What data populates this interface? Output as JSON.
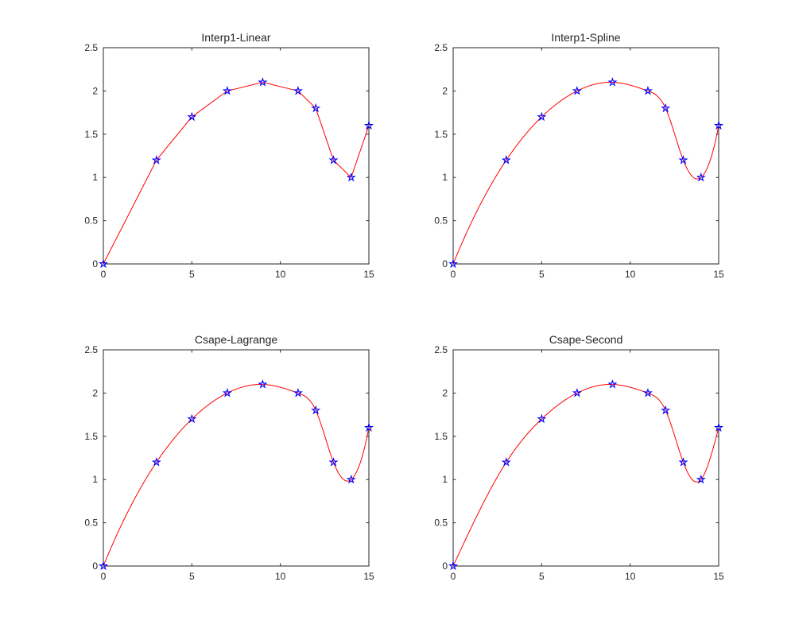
{
  "chart_data": [
    {
      "type": "line",
      "title": "Interp1-Linear",
      "method": "linear",
      "x": [
        0,
        3,
        5,
        7,
        9,
        11,
        12,
        13,
        14,
        15
      ],
      "y": [
        0,
        1.2,
        1.7,
        2.0,
        2.1,
        2.0,
        1.8,
        1.2,
        1.0,
        1.6
      ],
      "xlim": [
        0,
        15
      ],
      "ylim": [
        0,
        2.5
      ],
      "xticks": [
        0,
        5,
        10,
        15
      ],
      "xtick_labels": [
        "0",
        "5",
        "10",
        "15"
      ],
      "yticks": [
        0,
        0.5,
        1,
        1.5,
        2,
        2.5
      ],
      "ytick_labels": [
        "0",
        "0.5",
        "1",
        "1.5",
        "2",
        "2.5"
      ],
      "grid": false,
      "line_color": "#ff0000",
      "marker": "pentagram",
      "marker_color": "#0000ff"
    },
    {
      "type": "line",
      "title": "Interp1-Spline",
      "method": "spline",
      "x": [
        0,
        3,
        5,
        7,
        9,
        11,
        12,
        13,
        14,
        15
      ],
      "y": [
        0,
        1.2,
        1.7,
        2.0,
        2.1,
        2.0,
        1.8,
        1.2,
        1.0,
        1.6
      ],
      "xlim": [
        0,
        15
      ],
      "ylim": [
        0,
        2.5
      ],
      "xticks": [
        0,
        5,
        10,
        15
      ],
      "xtick_labels": [
        "0",
        "5",
        "10",
        "15"
      ],
      "yticks": [
        0,
        0.5,
        1,
        1.5,
        2,
        2.5
      ],
      "ytick_labels": [
        "0",
        "0.5",
        "1",
        "1.5",
        "2",
        "2.5"
      ],
      "grid": false,
      "line_color": "#ff0000",
      "marker": "pentagram",
      "marker_color": "#0000ff"
    },
    {
      "type": "line",
      "title": "Csape-Lagrange",
      "method": "spline",
      "x": [
        0,
        3,
        5,
        7,
        9,
        11,
        12,
        13,
        14,
        15
      ],
      "y": [
        0,
        1.2,
        1.7,
        2.0,
        2.1,
        2.0,
        1.8,
        1.2,
        1.0,
        1.6
      ],
      "xlim": [
        0,
        15
      ],
      "ylim": [
        0,
        2.5
      ],
      "xticks": [
        0,
        5,
        10,
        15
      ],
      "xtick_labels": [
        "0",
        "5",
        "10",
        "15"
      ],
      "yticks": [
        0,
        0.5,
        1,
        1.5,
        2,
        2.5
      ],
      "ytick_labels": [
        "0",
        "0.5",
        "1",
        "1.5",
        "2",
        "2.5"
      ],
      "grid": false,
      "line_color": "#ff0000",
      "marker": "pentagram",
      "marker_color": "#0000ff"
    },
    {
      "type": "line",
      "title": "Csape-Second",
      "method": "natural",
      "x": [
        0,
        3,
        5,
        7,
        9,
        11,
        12,
        13,
        14,
        15
      ],
      "y": [
        0,
        1.2,
        1.7,
        2.0,
        2.1,
        2.0,
        1.8,
        1.2,
        1.0,
        1.6
      ],
      "xlim": [
        0,
        15
      ],
      "ylim": [
        0,
        2.5
      ],
      "xticks": [
        0,
        5,
        10,
        15
      ],
      "xtick_labels": [
        "0",
        "5",
        "10",
        "15"
      ],
      "yticks": [
        0,
        0.5,
        1,
        1.5,
        2,
        2.5
      ],
      "ytick_labels": [
        "0",
        "0.5",
        "1",
        "1.5",
        "2",
        "2.5"
      ],
      "grid": false,
      "line_color": "#ff0000",
      "marker": "pentagram",
      "marker_color": "#0000ff"
    }
  ]
}
